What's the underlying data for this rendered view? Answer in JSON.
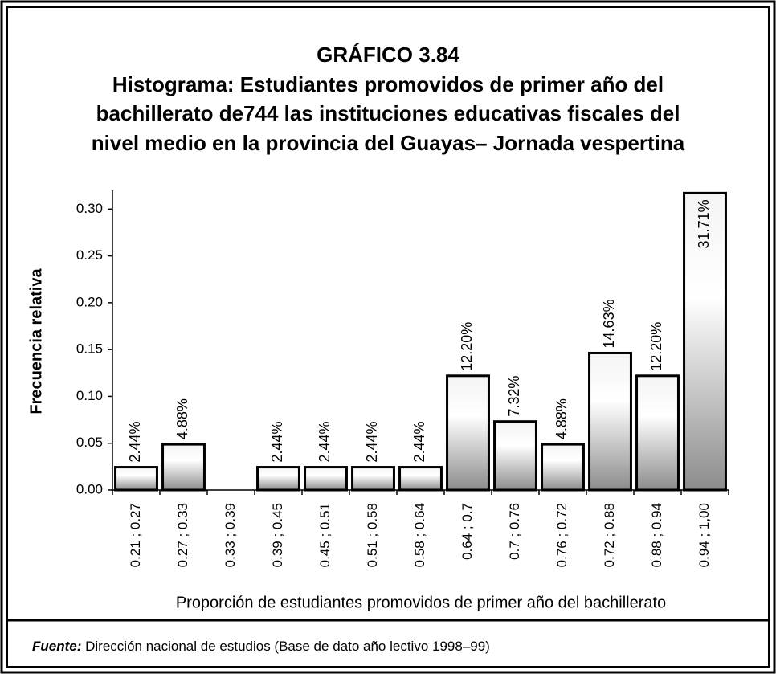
{
  "chart_data": {
    "type": "bar",
    "title": "GRÁFICO 3.84",
    "subtitle": [
      "Histograma: Estudiantes promovidos de primer año del",
      "bachillerato de744  las instituciones educativas fiscales del",
      "nivel medio en la provincia del Guayas– Jornada vespertina"
    ],
    "x_label": "Proporción de estudiantes promovidos de primer año del bachillerato",
    "y_label": "Frecuencia  relativa",
    "categories": [
      "0.21 ; 0.27",
      "0.27 ; 0.33",
      "0.33 ; 0.39",
      "0.39 ; 0.45",
      "0.45 ; 0.51",
      "0.51 ; 0.58",
      "0.58 ; 0.64",
      "0.64 ; 0.7",
      "0.7 ; 0.76",
      "0.76 ; 0.72",
      "0.72 ; 0.88",
      "0.88 ; 0.94",
      "0.94 ; 1,00"
    ],
    "values": [
      0.0244,
      0.0488,
      0,
      0.0244,
      0.0244,
      0.0244,
      0.0244,
      0.122,
      0.0732,
      0.0488,
      0.1463,
      0.122,
      0.3171
    ],
    "value_labels": [
      "2.44%",
      "4.88%",
      null,
      "2.44%",
      "2.44%",
      "2.44%",
      "2.44%",
      "12.20%",
      "7.32%",
      "4.88%",
      "14.63%",
      "12.20%",
      "31.71%"
    ],
    "ylim": [
      0,
      0.32
    ],
    "yticks": [
      {
        "value": 0,
        "label": "0.00"
      },
      0.05,
      {
        "value": 0.1,
        "label": "0.10"
      },
      0.15,
      {
        "value": 0.2,
        "label": "0.20"
      },
      0.25,
      {
        "value": 0.3,
        "label": "0.30"
      }
    ],
    "grid": false,
    "source_label": "Fuente:",
    "source_text": "Dirección nacional de estudios (Base de dato año lectivo 1998–99)"
  }
}
